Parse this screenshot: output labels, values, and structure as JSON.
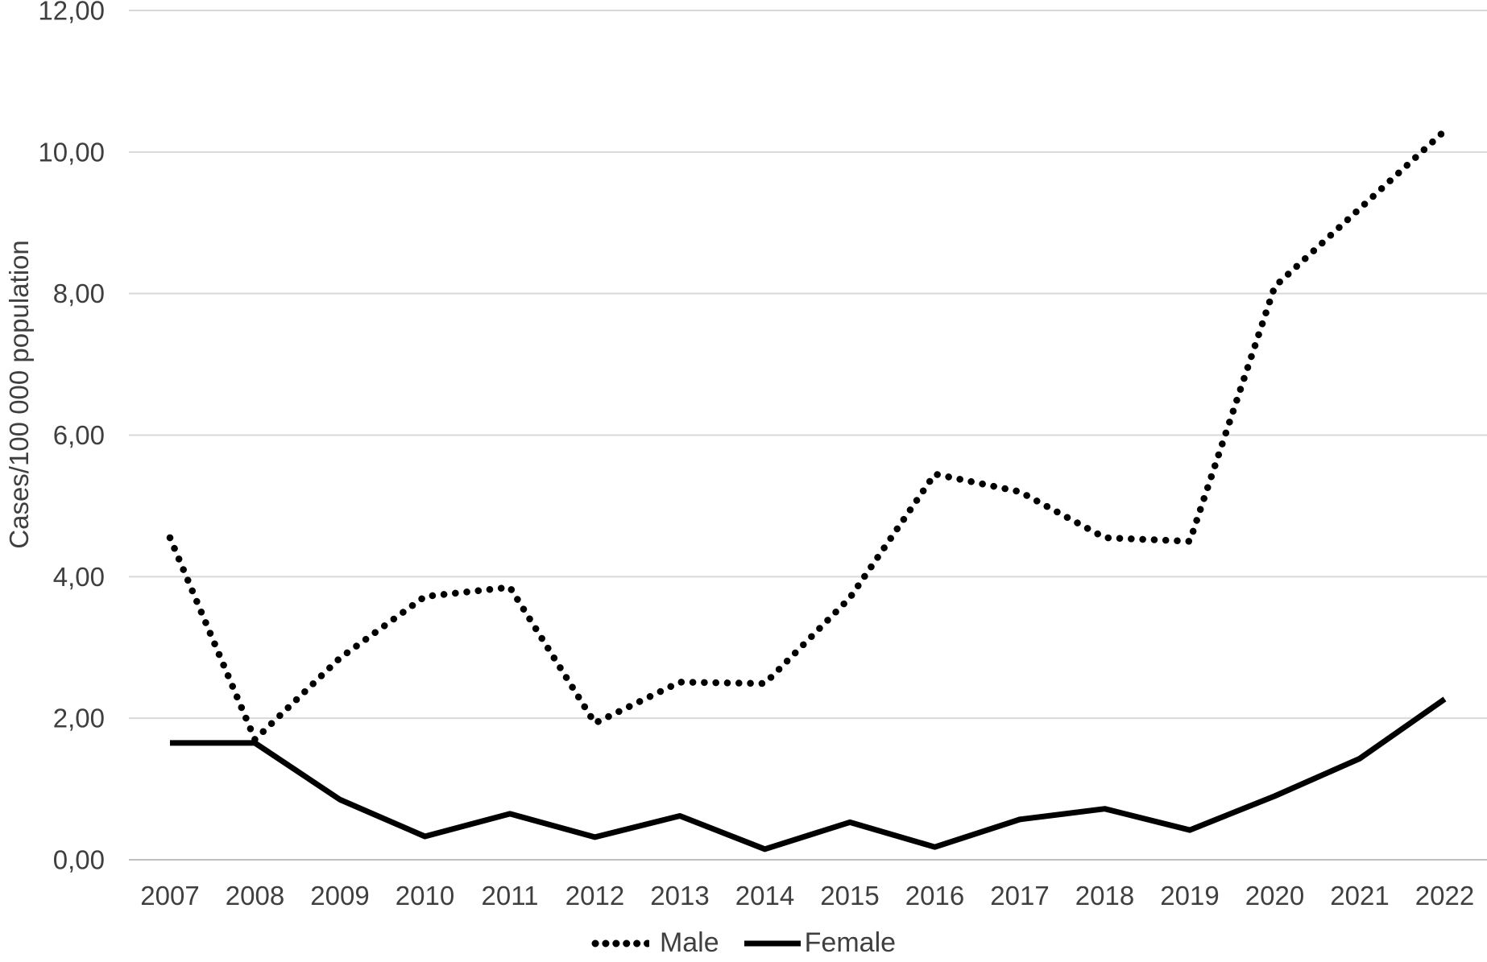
{
  "chart_data": {
    "type": "line",
    "title": "",
    "xlabel": "",
    "ylabel": "Cases/100 000 population",
    "categories": [
      "2007",
      "2008",
      "2009",
      "2010",
      "2011",
      "2012",
      "2013",
      "2014",
      "2015",
      "2016",
      "2017",
      "2018",
      "2019",
      "2020",
      "2021",
      "2022"
    ],
    "series": [
      {
        "name": "Male",
        "style": "dotted",
        "color": "#000000",
        "values": [
          4.55,
          1.7,
          2.85,
          3.72,
          3.85,
          1.93,
          2.51,
          2.49,
          3.7,
          5.45,
          5.2,
          4.55,
          4.5,
          8.1,
          9.2,
          10.3
        ]
      },
      {
        "name": "Female",
        "style": "solid",
        "color": "#000000",
        "values": [
          1.65,
          1.65,
          0.85,
          0.33,
          0.65,
          0.32,
          0.62,
          0.15,
          0.53,
          0.18,
          0.57,
          0.72,
          0.42,
          0.9,
          1.43,
          2.27
        ]
      }
    ],
    "ylim": [
      0,
      12
    ],
    "y_ticks": [
      {
        "value": 0,
        "label": "0,00"
      },
      {
        "value": 2,
        "label": "2,00"
      },
      {
        "value": 4,
        "label": "4,00"
      },
      {
        "value": 6,
        "label": "6,00"
      },
      {
        "value": 8,
        "label": "8,00"
      },
      {
        "value": 10,
        "label": "10,00"
      },
      {
        "value": 12,
        "label": "12,00"
      }
    ],
    "grid": true,
    "legend_position": "bottom-center",
    "colors": {
      "gridline": "#d9d9d9",
      "axis_line": "#bfbfbf",
      "tick_text": "#3f3f3f",
      "series_line": "#000000",
      "background": "#ffffff"
    }
  }
}
